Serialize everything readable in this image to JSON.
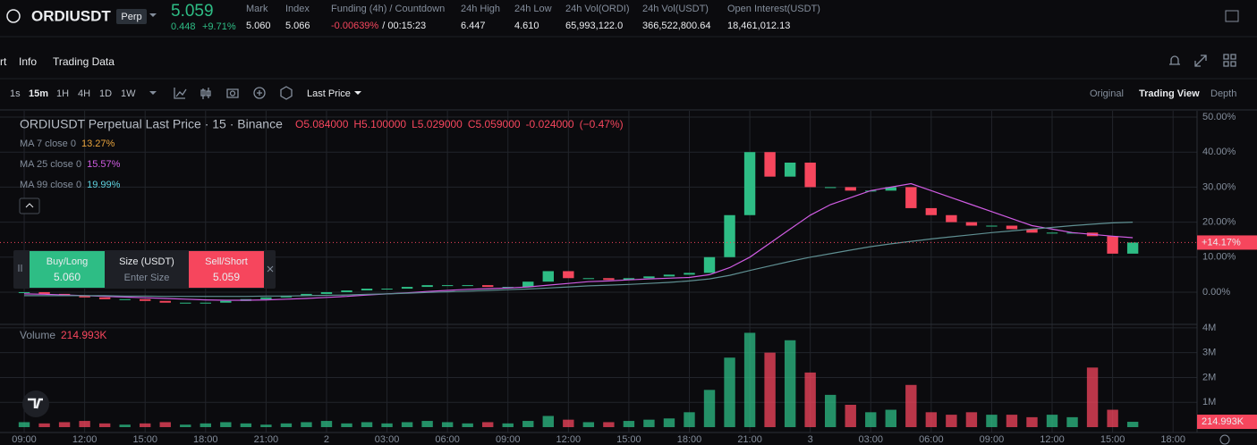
{
  "header": {
    "symbol": "ORDIUSDT",
    "badge": "Perp",
    "price": "5.059",
    "change": "0.448",
    "change_pct": "+9.71%",
    "stats": [
      {
        "label": "Mark",
        "value": "5.060"
      },
      {
        "label": "Index",
        "value": "5.066"
      },
      {
        "label": "Funding (4h) / Countdown",
        "value": "-0.00639%",
        "extra": "/ 00:15:23"
      },
      {
        "label": "24h High",
        "value": "6.447"
      },
      {
        "label": "24h Low",
        "value": "4.610"
      },
      {
        "label": "24h Vol(ORDI)",
        "value": "65,993,122.0"
      },
      {
        "label": "24h Vol(USDT)",
        "value": "366,522,800.64"
      },
      {
        "label": "Open Interest(USDT)",
        "value": "18,461,012.13"
      }
    ]
  },
  "tabs": [
    "rt",
    "Info",
    "Trading Data"
  ],
  "toolbar": {
    "intervals": [
      "1s",
      "15m",
      "1H",
      "4H",
      "1D",
      "1W"
    ],
    "price_type": "Last Price",
    "views": [
      "Original",
      "Trading View",
      "Depth"
    ]
  },
  "legend": {
    "title": "ORDIUSDT Perpetual Last Price · 15 · Binance",
    "ohlc": [
      "O5.084000",
      "H5.100000",
      "L5.029000",
      "C5.059000",
      "-0.024000",
      "(−0.47%)"
    ],
    "ma": [
      {
        "name": "MA 7 close 0",
        "value": "13.27%",
        "color": "#e8a33c"
      },
      {
        "name": "MA 25 close 0",
        "value": "15.57%",
        "color": "#d05ce3"
      },
      {
        "name": "MA 99 close 0",
        "value": "19.99%",
        "color": "#5fd3e0"
      }
    ],
    "volume": "Volume",
    "volume_value": "214.993K"
  },
  "trade": {
    "buy": "Buy/Long",
    "buy_price": "5.060",
    "size": "Size (USDT)",
    "size_placeholder": "Enter Size",
    "sell": "Sell/Short",
    "sell_price": "5.059"
  },
  "chart": {
    "type": "candlestick",
    "up_color": "#2ebd85",
    "down_color": "#f6465d",
    "grid": true,
    "x": [
      0,
      1,
      2,
      3,
      4,
      5,
      6,
      7,
      8,
      9,
      10,
      11,
      12,
      13,
      14,
      15,
      16,
      17,
      18,
      19,
      20,
      21,
      22,
      23,
      24,
      25,
      26,
      27,
      28,
      29,
      30,
      31,
      32,
      33,
      34,
      35,
      36,
      37,
      38,
      39,
      40,
      41,
      42,
      43,
      44,
      45,
      46,
      47,
      48,
      49,
      50,
      51,
      52,
      53,
      54,
      55
    ],
    "close": [
      0,
      -0.5,
      -1,
      -1.5,
      -2,
      -2,
      -2.5,
      -3,
      -3,
      -3,
      -2.5,
      -2,
      -1.5,
      -1,
      -0.5,
      0,
      0.5,
      1,
      1,
      1.5,
      2,
      2,
      2,
      1.5,
      1.5,
      3,
      6,
      4,
      4,
      3.5,
      4,
      4.5,
      5,
      5.5,
      10,
      22,
      40,
      33,
      37,
      30,
      30,
      29,
      29,
      30,
      24,
      22,
      20,
      19,
      19,
      18,
      17,
      17,
      17,
      16,
      11,
      14.17
    ],
    "volume": [
      0.2,
      0.15,
      0.2,
      0.25,
      0.15,
      0.1,
      0.15,
      0.2,
      0.1,
      0.15,
      0.2,
      0.15,
      0.1,
      0.15,
      0.2,
      0.25,
      0.15,
      0.2,
      0.15,
      0.2,
      0.25,
      0.2,
      0.15,
      0.2,
      0.15,
      0.25,
      0.45,
      0.3,
      0.2,
      0.2,
      0.25,
      0.3,
      0.35,
      0.6,
      1.5,
      2.8,
      3.8,
      3.0,
      3.5,
      2.2,
      1.3,
      0.9,
      0.6,
      0.7,
      1.7,
      0.6,
      0.5,
      0.6,
      0.5,
      0.5,
      0.4,
      0.5,
      0.4,
      2.4,
      0.7,
      0.214993
    ],
    "ma": [
      {
        "color": "#d05ce3",
        "values": [
          -0.5,
          -0.6,
          -0.8,
          -1,
          -1.2,
          -1.4,
          -1.6,
          -1.8,
          -2,
          -2.2,
          -2.3,
          -2.3,
          -2.2,
          -2,
          -1.8,
          -1.5,
          -1.2,
          -0.8,
          -0.5,
          -0.2,
          0.2,
          0.5,
          0.8,
          1,
          1.2,
          1.5,
          2,
          2.5,
          3,
          3.2,
          3.5,
          3.8,
          4,
          4.2,
          5,
          7,
          10,
          14,
          18,
          22,
          25,
          27,
          29,
          30,
          31,
          29,
          27,
          25,
          23,
          21,
          19,
          18,
          17,
          16.5,
          16,
          15.57
        ]
      },
      {
        "color": "#5f8f92",
        "values": [
          -1,
          -1,
          -1,
          -1,
          -1,
          -1.1,
          -1.1,
          -1.2,
          -1.2,
          -1.2,
          -1.2,
          -1.2,
          -1.1,
          -1.1,
          -1,
          -0.9,
          -0.8,
          -0.6,
          -0.5,
          -0.3,
          -0.1,
          0.1,
          0.3,
          0.5,
          0.7,
          0.9,
          1.2,
          1.5,
          1.8,
          2,
          2.2,
          2.5,
          2.8,
          3.2,
          3.8,
          4.8,
          6.2,
          7.5,
          8.8,
          10,
          11,
          12,
          13,
          13.8,
          14.5,
          15.2,
          15.8,
          16.4,
          17,
          17.5,
          18,
          18.5,
          19,
          19.4,
          19.8,
          20
        ]
      }
    ],
    "xlim": [
      -1.2,
      58.19
    ],
    "xticks": [
      {
        "value": 0,
        "label": "09:00"
      },
      {
        "value": 3,
        "label": "12:00"
      },
      {
        "value": 6,
        "label": "15:00"
      },
      {
        "value": 9,
        "label": "18:00"
      },
      {
        "value": 12,
        "label": "21:00"
      },
      {
        "value": 15,
        "label": "2"
      },
      {
        "value": 18,
        "label": "03:00"
      },
      {
        "value": 21,
        "label": "06:00"
      },
      {
        "value": 24,
        "label": "09:00"
      },
      {
        "value": 27,
        "label": "12:00"
      },
      {
        "value": 30,
        "label": "15:00"
      },
      {
        "value": 33,
        "label": "18:00"
      },
      {
        "value": 36,
        "label": "21:00"
      },
      {
        "value": 39,
        "label": "3"
      },
      {
        "value": 42,
        "label": "03:00"
      },
      {
        "value": 45,
        "label": "06:00"
      },
      {
        "value": 48,
        "label": "09:00"
      },
      {
        "value": 51,
        "label": "12:00"
      },
      {
        "value": 54,
        "label": "15:00"
      },
      {
        "value": 57,
        "label": "18:00"
      }
    ],
    "ylim": [
      -9.2,
      51.8
    ],
    "yticks": [
      {
        "value": 0,
        "label": "0.00%"
      },
      {
        "value": 10,
        "label": "10.00%"
      },
      {
        "value": 20,
        "label": "20.00%"
      },
      {
        "value": 30,
        "label": "30.00%"
      },
      {
        "value": 40,
        "label": "40.00%"
      },
      {
        "value": 50,
        "label": "50.00%"
      }
    ],
    "vylim": [
      0,
      4.14
    ],
    "vyticks": [
      {
        "value": 1,
        "label": "1M"
      },
      {
        "value": 2,
        "label": "2M"
      },
      {
        "value": 3,
        "label": "3M"
      },
      {
        "value": 4,
        "label": "4M"
      }
    ],
    "last_label": "+14.17%",
    "volume_label": "214.993K"
  }
}
